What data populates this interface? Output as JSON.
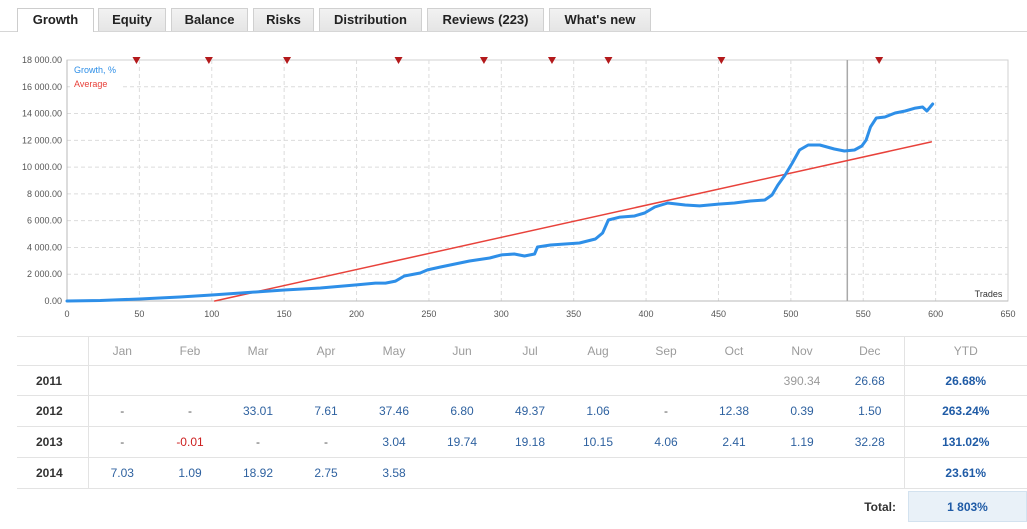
{
  "tabs": [
    {
      "label": "Growth",
      "active": true
    },
    {
      "label": "Equity"
    },
    {
      "label": "Balance"
    },
    {
      "label": "Risks"
    },
    {
      "label": "Distribution"
    },
    {
      "label": "Reviews (223)"
    },
    {
      "label": "What's new"
    }
  ],
  "chart_data": {
    "type": "line",
    "xlabel": "Trades",
    "xlim": [
      0,
      650
    ],
    "ylim": [
      0,
      18000
    ],
    "x_ticks": [
      0,
      50,
      100,
      150,
      200,
      250,
      300,
      350,
      400,
      450,
      500,
      550,
      600,
      650
    ],
    "y_ticks": [
      {
        "v": 0,
        "label": "0.00"
      },
      {
        "v": 2000,
        "label": "2 000.00"
      },
      {
        "v": 4000,
        "label": "4 000.00"
      },
      {
        "v": 6000,
        "label": "6 000.00"
      },
      {
        "v": 8000,
        "label": "8 000.00"
      },
      {
        "v": 10000,
        "label": "10 000.00"
      },
      {
        "v": 12000,
        "label": "12 000.00"
      },
      {
        "v": 14000,
        "label": "14 000.00"
      },
      {
        "v": 16000,
        "label": "16 000.00"
      },
      {
        "v": 18000,
        "label": "18 000.00"
      }
    ],
    "grid": true,
    "legend": "top-left",
    "series": [
      {
        "name": "Growth, %",
        "color": "#2e8fe8",
        "points": [
          [
            0,
            0
          ],
          [
            23,
            40
          ],
          [
            50,
            150
          ],
          [
            78,
            300
          ],
          [
            100,
            450
          ],
          [
            120,
            600
          ],
          [
            150,
            820
          ],
          [
            175,
            970
          ],
          [
            200,
            1200
          ],
          [
            213,
            1340
          ],
          [
            220,
            1340
          ],
          [
            227,
            1490
          ],
          [
            233,
            1870
          ],
          [
            244,
            2090
          ],
          [
            249,
            2320
          ],
          [
            258,
            2540
          ],
          [
            268,
            2760
          ],
          [
            278,
            2990
          ],
          [
            292,
            3210
          ],
          [
            300,
            3440
          ],
          [
            309,
            3510
          ],
          [
            316,
            3360
          ],
          [
            323,
            3510
          ],
          [
            325,
            4030
          ],
          [
            334,
            4180
          ],
          [
            344,
            4260
          ],
          [
            354,
            4330
          ],
          [
            365,
            4630
          ],
          [
            370,
            5080
          ],
          [
            374,
            6050
          ],
          [
            382,
            6270
          ],
          [
            392,
            6350
          ],
          [
            399,
            6570
          ],
          [
            406,
            7020
          ],
          [
            415,
            7320
          ],
          [
            427,
            7170
          ],
          [
            437,
            7100
          ],
          [
            450,
            7240
          ],
          [
            461,
            7320
          ],
          [
            472,
            7470
          ],
          [
            482,
            7540
          ],
          [
            487,
            7920
          ],
          [
            491,
            8660
          ],
          [
            496,
            9410
          ],
          [
            501,
            10310
          ],
          [
            506,
            11280
          ],
          [
            512,
            11650
          ],
          [
            520,
            11650
          ],
          [
            530,
            11350
          ],
          [
            537,
            11200
          ],
          [
            544,
            11280
          ],
          [
            549,
            11580
          ],
          [
            552,
            12020
          ],
          [
            555,
            13000
          ],
          [
            559,
            13670
          ],
          [
            565,
            13740
          ],
          [
            572,
            14040
          ],
          [
            579,
            14190
          ],
          [
            586,
            14410
          ],
          [
            591,
            14490
          ],
          [
            594,
            14190
          ],
          [
            598,
            14710
          ]
        ]
      },
      {
        "name": "Average",
        "color": "#e8423b",
        "points": [
          [
            102,
            0
          ],
          [
            597,
            11880
          ]
        ]
      }
    ],
    "vertical_line_x": 539,
    "event_markers_x": [
      48,
      98,
      152,
      229,
      288,
      335,
      374,
      452,
      561
    ],
    "marker_color": "#b3191b"
  },
  "returns": {
    "headers": [
      "Jan",
      "Feb",
      "Mar",
      "Apr",
      "May",
      "Jun",
      "Jul",
      "Aug",
      "Sep",
      "Oct",
      "Nov",
      "Dec",
      "YTD"
    ],
    "rows": [
      {
        "year": "2011",
        "cells": [
          "",
          "",
          "",
          "",
          "",
          "",
          "",
          "",
          "",
          "",
          {
            "v": "390.34",
            "color": "#9a9a9a"
          },
          "26.68"
        ],
        "ytd": "26.68%"
      },
      {
        "year": "2012",
        "cells": [
          "-",
          "-",
          "33.01",
          "7.61",
          "37.46",
          "6.80",
          "49.37",
          "1.06",
          "-",
          "12.38",
          "0.39",
          "1.50"
        ],
        "ytd": "263.24%"
      },
      {
        "year": "2013",
        "cells": [
          "-",
          {
            "v": "-0.01",
            "color": "#cc1f1f"
          },
          "-",
          "-",
          "3.04",
          "19.74",
          "19.18",
          "10.15",
          "4.06",
          "2.41",
          "1.19",
          "32.28"
        ],
        "ytd": "131.02%"
      },
      {
        "year": "2014",
        "cells": [
          "7.03",
          "1.09",
          "18.92",
          "2.75",
          "3.58",
          "",
          "",
          "",
          "",
          "",
          "",
          ""
        ],
        "ytd": "23.61%"
      }
    ],
    "total_label": "Total:",
    "total_value": "1 803%",
    "colors": {
      "value": "#2f62a0",
      "ytd": "#1f5ba6",
      "total_bg": "#e9f1f8"
    }
  }
}
